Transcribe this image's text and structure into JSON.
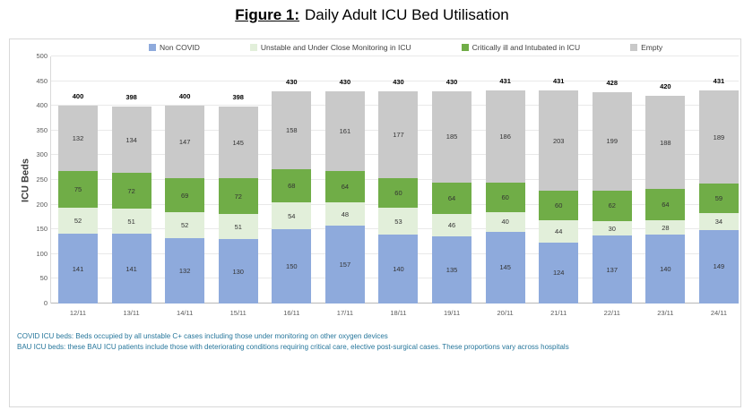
{
  "page": {
    "title_prefix": "Figure 1:",
    "title_rest": "Daily Adult ICU Bed Utilisation"
  },
  "footnotes": {
    "line1": "COVID ICU beds: Beds occupied by all unstable C+ cases including those under monitoring on other oxygen devices",
    "line2": "BAU ICU beds: these BAU ICU patients include those with deteriorating conditions requiring critical care, elective post-surgical cases. These proportions vary across hospitals"
  },
  "chart_data": {
    "type": "bar",
    "stacked": true,
    "title": "Figure 1: Daily Adult ICU Bed Utilisation",
    "xlabel": "",
    "ylabel": "ICU Beds",
    "ylim": [
      0,
      500
    ],
    "ytick_interval": 50,
    "grid": true,
    "legend_position": "top",
    "categories": [
      "12/11",
      "13/11",
      "14/11",
      "15/11",
      "16/11",
      "17/11",
      "18/11",
      "19/11",
      "20/11",
      "21/11",
      "22/11",
      "23/11",
      "24/11"
    ],
    "series": [
      {
        "name": "Non COVID",
        "color": "#8eaadc",
        "values": [
          141,
          141,
          132,
          130,
          150,
          157,
          140,
          135,
          145,
          124,
          137,
          140,
          149
        ]
      },
      {
        "name": "Unstable and Under Close Monitoring in ICU",
        "color": "#e2efda",
        "values": [
          52,
          51,
          52,
          51,
          54,
          48,
          53,
          46,
          40,
          44,
          30,
          28,
          34
        ]
      },
      {
        "name": "Critically ill and Intubated in ICU",
        "color": "#70ad47",
        "values": [
          75,
          72,
          69,
          72,
          68,
          64,
          60,
          64,
          60,
          60,
          62,
          64,
          59
        ]
      },
      {
        "name": "Empty",
        "color": "#c9c9c9",
        "values": [
          132,
          134,
          147,
          145,
          158,
          161,
          177,
          185,
          186,
          203,
          199,
          188,
          189
        ]
      }
    ],
    "totals": [
      400,
      398,
      400,
      398,
      430,
      430,
      430,
      430,
      431,
      431,
      428,
      420,
      431
    ]
  }
}
